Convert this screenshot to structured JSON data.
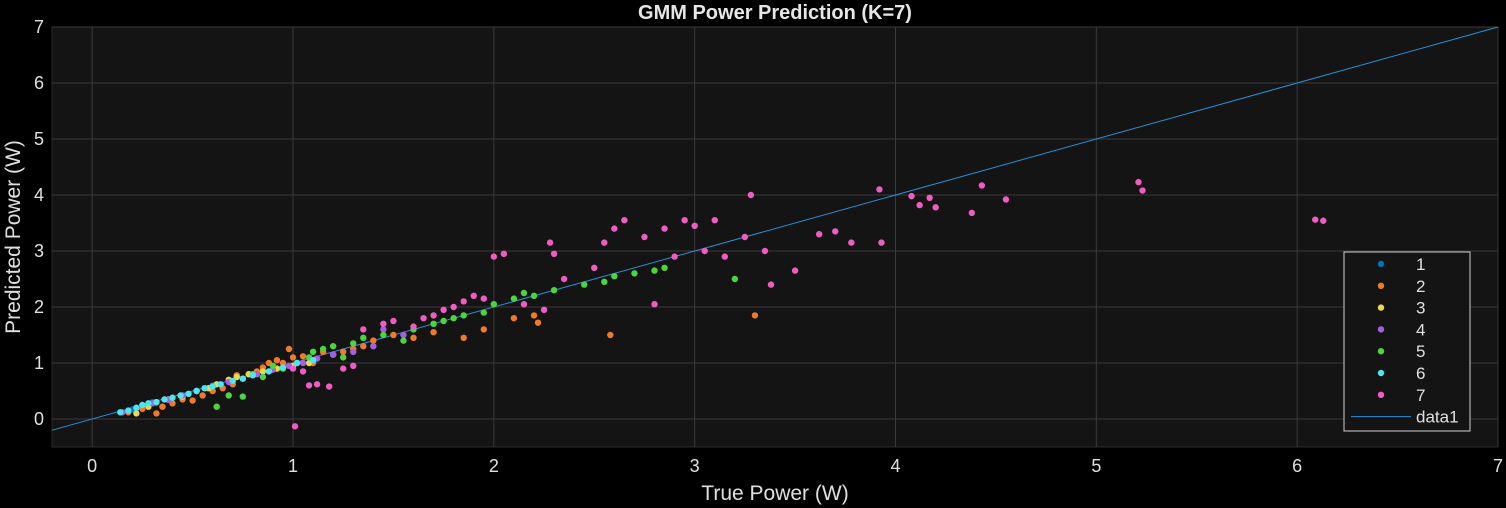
{
  "chart_data": {
    "type": "scatter",
    "title": "GMM Power Prediction (K=7)",
    "xlabel": "True Power (W)",
    "ylabel": "Predicted Power (W)",
    "xlim": [
      -0.2,
      7
    ],
    "ylim": [
      -0.5,
      7
    ],
    "xticks": [
      "0",
      "1",
      "2",
      "3",
      "4",
      "5",
      "6",
      "7"
    ],
    "yticks": [
      "0",
      "1",
      "2",
      "3",
      "4",
      "5",
      "6",
      "7"
    ],
    "grid": true,
    "legend_position": "bottom-right",
    "background": "#141414",
    "series": [
      {
        "name": "1",
        "color": "#0072BD",
        "points": [
          [
            0.2,
            0.17
          ],
          [
            0.3,
            0.3
          ],
          [
            0.45,
            0.42
          ],
          [
            0.6,
            0.6
          ],
          [
            0.75,
            0.72
          ]
        ]
      },
      {
        "name": "2",
        "color": "#F07A2A",
        "points": [
          [
            0.18,
            0.12
          ],
          [
            0.25,
            0.18
          ],
          [
            0.32,
            0.1
          ],
          [
            0.35,
            0.22
          ],
          [
            0.4,
            0.28
          ],
          [
            0.45,
            0.35
          ],
          [
            0.5,
            0.33
          ],
          [
            0.55,
            0.42
          ],
          [
            0.6,
            0.5
          ],
          [
            0.65,
            0.55
          ],
          [
            0.7,
            0.62
          ],
          [
            0.72,
            0.78
          ],
          [
            0.78,
            0.8
          ],
          [
            0.82,
            0.85
          ],
          [
            0.85,
            0.92
          ],
          [
            0.88,
            1.0
          ],
          [
            0.92,
            1.05
          ],
          [
            0.95,
            1.0
          ],
          [
            0.98,
            1.25
          ],
          [
            1.0,
            1.1
          ],
          [
            1.05,
            1.12
          ],
          [
            1.1,
            1.0
          ],
          [
            1.15,
            1.2
          ],
          [
            1.2,
            1.15
          ],
          [
            1.25,
            1.2
          ],
          [
            1.3,
            1.25
          ],
          [
            1.35,
            1.3
          ],
          [
            1.4,
            1.4
          ],
          [
            1.5,
            1.5
          ],
          [
            1.6,
            1.45
          ],
          [
            1.7,
            1.55
          ],
          [
            1.85,
            1.45
          ],
          [
            1.95,
            1.6
          ],
          [
            2.1,
            1.8
          ],
          [
            2.2,
            1.85
          ],
          [
            2.22,
            1.72
          ],
          [
            2.58,
            1.5
          ],
          [
            3.3,
            1.85
          ]
        ]
      },
      {
        "name": "3",
        "color": "#EDD84A",
        "points": [
          [
            0.22,
            0.1
          ],
          [
            0.28,
            0.22
          ],
          [
            0.32,
            0.3
          ],
          [
            0.38,
            0.35
          ],
          [
            0.45,
            0.4
          ],
          [
            0.52,
            0.5
          ],
          [
            0.58,
            0.55
          ],
          [
            0.62,
            0.62
          ],
          [
            0.68,
            0.7
          ],
          [
            0.72,
            0.75
          ],
          [
            0.78,
            0.8
          ],
          [
            0.85,
            0.85
          ],
          [
            0.92,
            0.9
          ],
          [
            1.0,
            0.95
          ],
          [
            1.08,
            1.0
          ]
        ]
      },
      {
        "name": "4",
        "color": "#A45EE8",
        "points": [
          [
            0.15,
            0.12
          ],
          [
            0.22,
            0.2
          ],
          [
            0.3,
            0.28
          ],
          [
            0.38,
            0.34
          ],
          [
            0.45,
            0.42
          ],
          [
            0.52,
            0.5
          ],
          [
            0.6,
            0.58
          ],
          [
            0.68,
            0.66
          ],
          [
            0.75,
            0.72
          ],
          [
            0.82,
            0.8
          ],
          [
            0.9,
            0.88
          ],
          [
            0.98,
            0.95
          ],
          [
            1.05,
            1.0
          ],
          [
            1.12,
            1.08
          ],
          [
            1.2,
            1.15
          ],
          [
            1.3,
            1.2
          ],
          [
            1.4,
            1.3
          ],
          [
            1.45,
            1.6
          ],
          [
            1.55,
            1.5
          ]
        ]
      },
      {
        "name": "5",
        "color": "#4DD53F",
        "points": [
          [
            0.62,
            0.22
          ],
          [
            0.68,
            0.42
          ],
          [
            0.75,
            0.4
          ],
          [
            0.8,
            0.8
          ],
          [
            0.85,
            0.75
          ],
          [
            0.9,
            0.95
          ],
          [
            0.95,
            0.9
          ],
          [
            1.02,
            1.0
          ],
          [
            1.08,
            1.1
          ],
          [
            1.1,
            1.2
          ],
          [
            1.15,
            1.25
          ],
          [
            1.2,
            1.3
          ],
          [
            1.25,
            1.1
          ],
          [
            1.3,
            1.35
          ],
          [
            1.35,
            1.45
          ],
          [
            1.45,
            1.5
          ],
          [
            1.55,
            1.4
          ],
          [
            1.6,
            1.6
          ],
          [
            1.7,
            1.7
          ],
          [
            1.75,
            1.75
          ],
          [
            1.8,
            1.8
          ],
          [
            1.85,
            1.85
          ],
          [
            1.95,
            1.9
          ],
          [
            2.0,
            2.05
          ],
          [
            2.1,
            2.15
          ],
          [
            2.15,
            2.25
          ],
          [
            2.2,
            2.2
          ],
          [
            2.3,
            2.3
          ],
          [
            2.45,
            2.4
          ],
          [
            2.55,
            2.45
          ],
          [
            2.6,
            2.55
          ],
          [
            2.7,
            2.6
          ],
          [
            2.8,
            2.65
          ],
          [
            2.85,
            2.7
          ],
          [
            3.2,
            2.5
          ]
        ]
      },
      {
        "name": "6",
        "color": "#4DE6EE",
        "points": [
          [
            0.14,
            0.12
          ],
          [
            0.18,
            0.15
          ],
          [
            0.22,
            0.2
          ],
          [
            0.25,
            0.25
          ],
          [
            0.28,
            0.28
          ],
          [
            0.32,
            0.3
          ],
          [
            0.36,
            0.35
          ],
          [
            0.4,
            0.38
          ],
          [
            0.44,
            0.42
          ],
          [
            0.48,
            0.45
          ],
          [
            0.52,
            0.5
          ],
          [
            0.56,
            0.55
          ],
          [
            0.6,
            0.58
          ],
          [
            0.64,
            0.62
          ],
          [
            0.7,
            0.68
          ],
          [
            0.75,
            0.72
          ],
          [
            0.8,
            0.78
          ],
          [
            0.88,
            0.85
          ],
          [
            0.95,
            0.92
          ],
          [
            1.02,
            1.0
          ],
          [
            1.1,
            1.05
          ]
        ]
      },
      {
        "name": "7",
        "color": "#F05CC2",
        "points": [
          [
            1.01,
            -0.13
          ],
          [
            1.0,
            0.9
          ],
          [
            1.05,
            0.85
          ],
          [
            1.08,
            0.6
          ],
          [
            1.12,
            0.62
          ],
          [
            1.18,
            0.58
          ],
          [
            1.25,
            0.9
          ],
          [
            1.3,
            0.95
          ],
          [
            1.35,
            1.6
          ],
          [
            1.45,
            1.7
          ],
          [
            1.5,
            1.75
          ],
          [
            1.6,
            1.65
          ],
          [
            1.65,
            1.8
          ],
          [
            1.7,
            1.85
          ],
          [
            1.75,
            1.95
          ],
          [
            1.8,
            2.0
          ],
          [
            1.85,
            2.1
          ],
          [
            1.9,
            2.2
          ],
          [
            1.95,
            2.15
          ],
          [
            2.0,
            2.9
          ],
          [
            2.05,
            2.95
          ],
          [
            2.15,
            2.05
          ],
          [
            2.25,
            1.95
          ],
          [
            2.28,
            3.15
          ],
          [
            2.3,
            2.95
          ],
          [
            2.35,
            2.5
          ],
          [
            2.5,
            2.7
          ],
          [
            2.55,
            3.15
          ],
          [
            2.6,
            3.4
          ],
          [
            2.65,
            3.55
          ],
          [
            2.75,
            3.25
          ],
          [
            2.8,
            2.05
          ],
          [
            2.85,
            3.4
          ],
          [
            2.9,
            2.9
          ],
          [
            2.95,
            3.55
          ],
          [
            3.0,
            3.45
          ],
          [
            3.05,
            3.0
          ],
          [
            3.1,
            3.55
          ],
          [
            3.15,
            2.9
          ],
          [
            3.25,
            3.25
          ],
          [
            3.28,
            4.0
          ],
          [
            3.35,
            3.0
          ],
          [
            3.38,
            2.4
          ],
          [
            3.5,
            2.65
          ],
          [
            3.62,
            3.3
          ],
          [
            3.7,
            3.35
          ],
          [
            3.78,
            3.15
          ],
          [
            3.92,
            4.1
          ],
          [
            3.93,
            3.15
          ],
          [
            4.08,
            3.98
          ],
          [
            4.12,
            3.82
          ],
          [
            4.17,
            3.95
          ],
          [
            4.2,
            3.78
          ],
          [
            4.38,
            3.68
          ],
          [
            4.43,
            4.17
          ],
          [
            4.55,
            3.92
          ],
          [
            5.21,
            4.23
          ],
          [
            5.23,
            4.08
          ],
          [
            6.09,
            3.56
          ],
          [
            6.13,
            3.54
          ]
        ]
      }
    ],
    "reference_line": {
      "name": "data1",
      "color": "#2B8FD6",
      "x": [
        -0.2,
        7
      ],
      "y": [
        -0.2,
        7
      ]
    }
  }
}
